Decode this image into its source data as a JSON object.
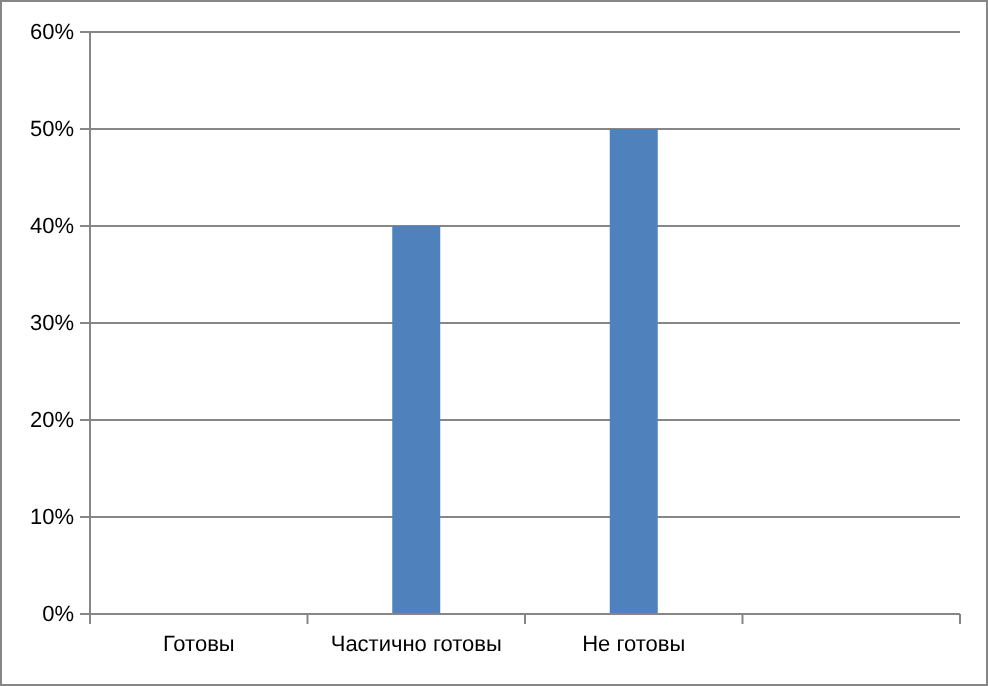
{
  "chart_data": {
    "type": "bar",
    "categories": [
      "Готовы",
      "Частично готовы",
      "Не готовы",
      null
    ],
    "values": [
      0,
      40,
      50,
      null
    ],
    "color": "#4f81bd",
    "ylim": [
      0,
      60
    ],
    "yticks": [
      {
        "value": 0,
        "label": "0%"
      },
      {
        "value": 10,
        "label": "10%"
      },
      {
        "value": 20,
        "label": "20%"
      },
      {
        "value": 30,
        "label": "30%"
      },
      {
        "value": 40,
        "label": "40%"
      },
      {
        "value": 50,
        "label": "50%"
      },
      {
        "value": 60,
        "label": "60%"
      }
    ],
    "grid": "y"
  }
}
